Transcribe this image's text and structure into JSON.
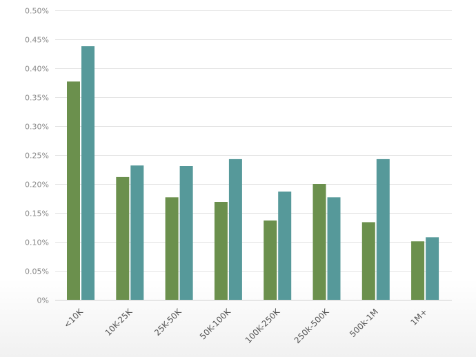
{
  "chart_data": {
    "type": "bar",
    "title": "",
    "xlabel": "",
    "ylabel": "",
    "categories": [
      "<10K",
      "10K-25K",
      "25K-50K",
      "50K-100K",
      "100K-250K",
      "250k-500K",
      "500k-1M",
      "1M+"
    ],
    "series": [
      {
        "values": [
          0.377,
          0.212,
          0.177,
          0.169,
          0.137,
          0.2,
          0.134,
          0.101
        ],
        "color": "#6b904d"
      },
      {
        "values": [
          0.438,
          0.232,
          0.231,
          0.243,
          0.187,
          0.177,
          0.243,
          0.108
        ],
        "color": "#56999a"
      }
    ],
    "ylim": [
      0,
      0.5
    ],
    "yticks": [
      0,
      0.05,
      0.1,
      0.15,
      0.2,
      0.25,
      0.3,
      0.35,
      0.4,
      0.45,
      0.5
    ],
    "ytick_labels": [
      "0%",
      "0.05%",
      "0.10%",
      "0.15%",
      "0.20%",
      "0.25%",
      "0.30%",
      "0.35%",
      "0.40%",
      "0.45%",
      "0.50%"
    ],
    "grid": true,
    "legend": "none",
    "x_tick_rotation_deg": -45
  }
}
